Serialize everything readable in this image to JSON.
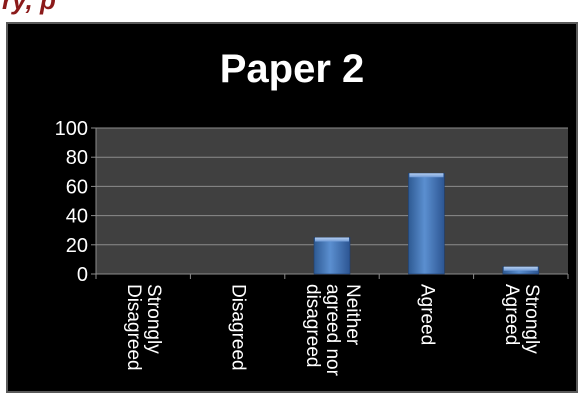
{
  "heading_fragment": "ry, p",
  "chart_data": {
    "type": "bar",
    "title": "Paper 2",
    "categories": [
      "Strongly Disagreed",
      "Disagreed",
      "Neither agreed nor disagreed",
      "Agreed",
      "Strongly Agreed"
    ],
    "category_label_lines": [
      [
        "Strongly",
        "Disagreed"
      ],
      [
        "Disagreed"
      ],
      [
        "Neither",
        "agreed nor",
        "disagreed"
      ],
      [
        "Agreed"
      ],
      [
        "Strongly",
        "Agreed"
      ]
    ],
    "values": [
      0,
      0,
      25,
      69,
      5
    ],
    "ylim": [
      0,
      100
    ],
    "yticks": [
      "0",
      "20",
      "40",
      "60",
      "80",
      "100"
    ],
    "grid": true,
    "colors": {
      "background": "#000000",
      "plot_area": "#404040",
      "bar": "#4f81bd",
      "text": "#ffffff",
      "gridline": "#8c8c8c"
    }
  }
}
